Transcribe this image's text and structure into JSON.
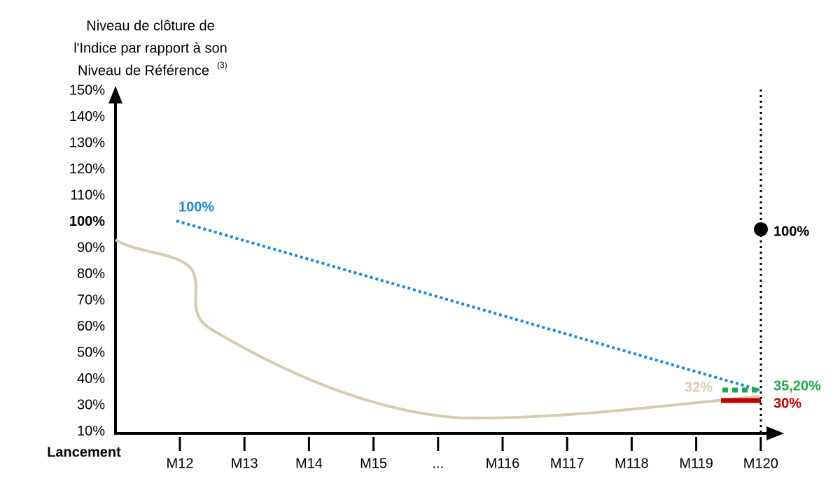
{
  "y_axis": {
    "title": [
      "Niveau de clôture de",
      "l'Indice par rapport à son",
      "Niveau de Référence"
    ],
    "title_superscript": "(3)",
    "labels": [
      "150%",
      "140%",
      "130%",
      "120%",
      "110%",
      "100%",
      "90%",
      "80%",
      "70%",
      "60%",
      "50%",
      "40%",
      "30%",
      "10%"
    ]
  },
  "x_axis": {
    "origin_label": "Lancement",
    "labels": [
      "M12",
      "M13",
      "M14",
      "M15",
      "...",
      "M116",
      "M117",
      "M118",
      "M119",
      "M120"
    ]
  },
  "annotations": {
    "barrier_start": "100%",
    "final_level": "32%",
    "coupon_barrier": "35,20%",
    "capital_barrier": "30%",
    "maturity_outcome": "100%"
  }
}
